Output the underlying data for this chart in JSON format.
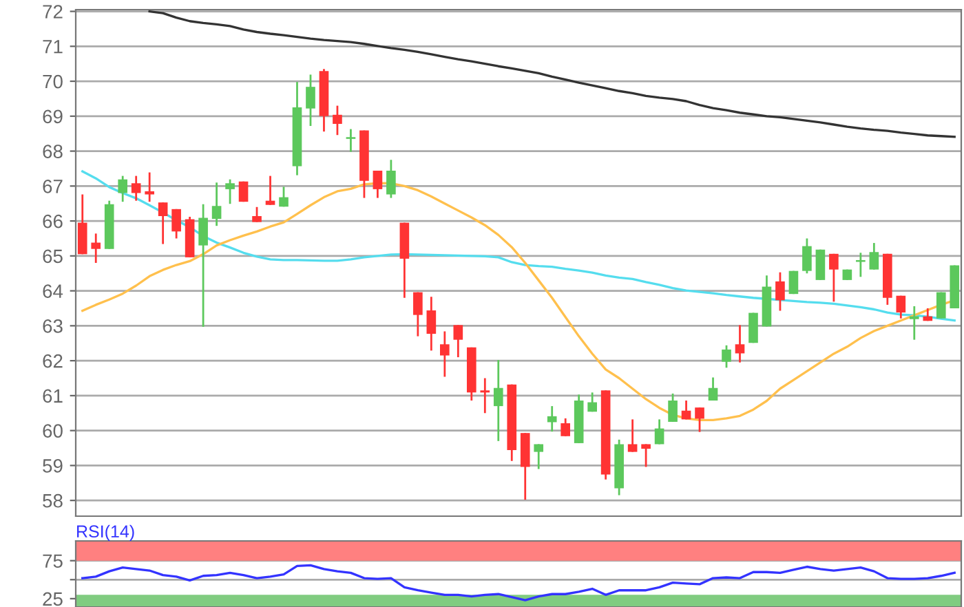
{
  "chart_data": [
    {
      "type": "candlestick",
      "categories": [
        null,
        null,
        null,
        null,
        null,
        null,
        null,
        null,
        null,
        null,
        null,
        null,
        null,
        null,
        null,
        null,
        null,
        null,
        null,
        null,
        null,
        null,
        null,
        null,
        null,
        null,
        null,
        null,
        null,
        null,
        null,
        null,
        null,
        null,
        null,
        null,
        null,
        null,
        null,
        null,
        null,
        null,
        null,
        null,
        null,
        null,
        null,
        null,
        null,
        null,
        null,
        null,
        null,
        null,
        null,
        null,
        null,
        null,
        null,
        null,
        null,
        null,
        null,
        null,
        null,
        null
      ],
      "ohlc": [
        [
          65.95,
          66.76,
          65.05,
          65.05
        ],
        [
          65.38,
          65.64,
          64.8,
          65.2
        ],
        [
          65.2,
          66.58,
          65.2,
          66.48
        ],
        [
          66.8,
          67.29,
          66.55,
          67.19
        ],
        [
          67.08,
          67.29,
          66.58,
          66.8
        ],
        [
          66.85,
          67.39,
          66.55,
          66.76
        ],
        [
          66.53,
          66.53,
          65.34,
          66.14
        ],
        [
          66.34,
          66.34,
          65.5,
          65.7
        ],
        [
          66.05,
          66.12,
          64.96,
          64.96
        ],
        [
          65.3,
          66.48,
          62.97,
          66.09
        ],
        [
          66.06,
          67.1,
          65.86,
          66.43
        ],
        [
          66.91,
          67.19,
          66.49,
          67.08
        ],
        [
          67.13,
          67.13,
          66.55,
          66.55
        ],
        [
          66.14,
          66.4,
          65.97,
          65.97
        ],
        [
          66.58,
          67.29,
          66.46,
          66.46
        ],
        [
          66.41,
          66.98,
          66.41,
          66.68
        ],
        [
          67.57,
          69.98,
          67.31,
          69.25
        ],
        [
          69.22,
          70.19,
          68.72,
          69.84
        ],
        [
          70.29,
          70.35,
          68.56,
          69.0
        ],
        [
          69.04,
          69.3,
          68.46,
          68.78
        ],
        [
          68.35,
          68.63,
          67.98,
          68.4
        ],
        [
          68.59,
          68.59,
          66.66,
          67.15
        ],
        [
          67.44,
          67.44,
          66.66,
          66.91
        ],
        [
          66.76,
          67.75,
          66.66,
          67.44
        ],
        [
          65.95,
          65.95,
          63.8,
          64.92
        ],
        [
          63.96,
          63.96,
          62.7,
          63.31
        ],
        [
          63.44,
          63.83,
          62.29,
          62.77
        ],
        [
          62.47,
          62.84,
          61.54,
          62.15
        ],
        [
          63.02,
          63.02,
          62.1,
          62.6
        ],
        [
          62.38,
          62.38,
          60.86,
          61.09
        ],
        [
          61.15,
          61.5,
          60.5,
          61.09
        ],
        [
          60.7,
          62.02,
          59.7,
          61.22
        ],
        [
          61.32,
          61.32,
          59.13,
          59.44
        ],
        [
          59.93,
          59.93,
          58.02,
          58.96
        ],
        [
          59.39,
          59.61,
          58.9,
          59.61
        ],
        [
          60.24,
          60.7,
          59.97,
          60.41
        ],
        [
          60.21,
          60.35,
          59.84,
          59.84
        ],
        [
          59.64,
          61.03,
          59.64,
          60.86
        ],
        [
          60.54,
          61.09,
          60.54,
          60.81
        ],
        [
          61.15,
          61.15,
          58.6,
          58.74
        ],
        [
          58.35,
          59.74,
          58.15,
          59.61
        ],
        [
          59.61,
          60.32,
          59.39,
          59.39
        ],
        [
          59.61,
          59.61,
          58.96,
          59.48
        ],
        [
          59.61,
          60.32,
          59.61,
          60.06
        ],
        [
          60.25,
          61.06,
          60.25,
          60.86
        ],
        [
          60.57,
          60.86,
          60.32,
          60.32
        ],
        [
          60.66,
          60.66,
          59.96,
          60.34
        ],
        [
          60.86,
          61.52,
          60.86,
          61.22
        ],
        [
          61.97,
          62.44,
          61.8,
          62.32
        ],
        [
          62.47,
          63.02,
          61.95,
          62.21
        ],
        [
          62.51,
          63.37,
          62.51,
          63.37
        ],
        [
          62.98,
          64.44,
          62.98,
          64.12
        ],
        [
          64.27,
          64.53,
          63.43,
          63.73
        ],
        [
          63.91,
          64.57,
          63.91,
          64.57
        ],
        [
          64.57,
          65.5,
          64.5,
          65.28
        ],
        [
          64.31,
          65.18,
          64.31,
          65.18
        ],
        [
          65.06,
          65.06,
          63.69,
          64.61
        ],
        [
          64.31,
          64.61,
          64.31,
          64.61
        ],
        [
          64.83,
          65.09,
          64.4,
          64.88
        ],
        [
          64.61,
          65.37,
          64.61,
          65.11
        ],
        [
          65.06,
          65.06,
          63.6,
          63.8
        ],
        [
          63.86,
          63.86,
          63.21,
          63.38
        ],
        [
          63.19,
          63.56,
          62.6,
          63.27
        ],
        [
          63.27,
          63.5,
          63.14,
          63.14
        ],
        [
          63.21,
          63.96,
          63.21,
          63.96
        ],
        [
          63.5,
          64.73,
          63.5,
          64.73
        ]
      ],
      "colors": [
        "#ff3333",
        "#ff3333",
        "#5cc85c",
        "#5cc85c",
        "#ff3333",
        "#ff3333",
        "#ff3333",
        "#ff3333",
        "#ff3333",
        "#5cc85c",
        "#5cc85c",
        "#5cc85c",
        "#ff3333",
        "#ff3333",
        "#ff3333",
        "#5cc85c",
        "#5cc85c",
        "#5cc85c",
        "#ff3333",
        "#ff3333",
        "#5cc85c",
        "#ff3333",
        "#ff3333",
        "#5cc85c",
        "#ff3333",
        "#ff3333",
        "#ff3333",
        "#ff3333",
        "#ff3333",
        "#ff3333",
        "#ff3333",
        "#5cc85c",
        "#ff3333",
        "#ff3333",
        "#5cc85c",
        "#5cc85c",
        "#ff3333",
        "#5cc85c",
        "#5cc85c",
        "#ff3333",
        "#5cc85c",
        "#ff3333",
        "#ff3333",
        "#5cc85c",
        "#5cc85c",
        "#ff3333",
        "#ff3333",
        "#5cc85c",
        "#5cc85c",
        "#ff3333",
        "#5cc85c",
        "#5cc85c",
        "#ff3333",
        "#5cc85c",
        "#5cc85c",
        "#5cc85c",
        "#ff3333",
        "#5cc85c",
        "#5cc85c",
        "#5cc85c",
        "#ff3333",
        "#ff3333",
        "#5cc85c",
        "#ff3333",
        "#5cc85c",
        "#5cc85c"
      ],
      "series": [
        {
          "type": "line",
          "color": "#333333",
          "values": [
            null,
            null,
            null,
            null,
            null,
            72.0,
            71.95,
            71.82,
            71.72,
            71.67,
            71.63,
            71.58,
            71.48,
            71.41,
            71.36,
            71.32,
            71.27,
            71.22,
            71.18,
            71.15,
            71.12,
            71.07,
            71.01,
            70.95,
            70.9,
            70.84,
            70.77,
            70.7,
            70.63,
            70.57,
            70.5,
            70.43,
            70.37,
            70.3,
            70.23,
            70.13,
            70.05,
            69.96,
            69.88,
            69.8,
            69.72,
            69.66,
            69.58,
            69.53,
            69.49,
            69.43,
            69.32,
            69.23,
            69.17,
            69.1,
            69.05,
            69.0,
            68.97,
            68.92,
            68.87,
            68.82,
            68.76,
            68.7,
            68.65,
            68.61,
            68.58,
            68.53,
            68.49,
            68.45,
            68.43,
            68.41
          ]
        },
        {
          "type": "line",
          "color": "#55ddee",
          "values": [
            67.42,
            67.22,
            66.97,
            66.8,
            66.65,
            66.45,
            66.24,
            66.02,
            65.82,
            65.57,
            65.38,
            65.24,
            65.09,
            64.98,
            64.9,
            64.88,
            64.88,
            64.87,
            64.86,
            64.86,
            64.9,
            64.96,
            65.0,
            65.04,
            65.05,
            65.04,
            65.03,
            65.02,
            65.01,
            65.0,
            64.99,
            64.96,
            64.82,
            64.74,
            64.71,
            64.69,
            64.63,
            64.58,
            64.52,
            64.44,
            64.38,
            64.34,
            64.25,
            64.17,
            64.08,
            64.01,
            63.97,
            63.93,
            63.88,
            63.84,
            63.8,
            63.77,
            63.74,
            63.71,
            63.68,
            63.66,
            63.63,
            63.58,
            63.53,
            63.47,
            63.38,
            63.32,
            63.3,
            63.26,
            63.2,
            63.15
          ]
        },
        {
          "type": "line",
          "color": "#ffc04d",
          "values": [
            63.43,
            63.6,
            63.75,
            63.92,
            64.15,
            64.42,
            64.6,
            64.74,
            64.85,
            65.05,
            65.3,
            65.45,
            65.58,
            65.7,
            65.84,
            65.96,
            66.2,
            66.45,
            66.68,
            66.85,
            66.92,
            67.05,
            67.08,
            67.08,
            67.0,
            66.88,
            66.7,
            66.5,
            66.3,
            66.1,
            65.88,
            65.6,
            65.25,
            64.8,
            64.3,
            63.8,
            63.25,
            62.7,
            62.2,
            61.75,
            61.5,
            61.2,
            60.9,
            60.65,
            60.45,
            60.35,
            60.3,
            60.3,
            60.35,
            60.42,
            60.6,
            60.85,
            61.2,
            61.45,
            61.7,
            61.95,
            62.2,
            62.4,
            62.65,
            62.85,
            63.0,
            63.15,
            63.3,
            63.45,
            63.6,
            63.73
          ]
        }
      ],
      "ylim": [
        57.55,
        72.05
      ],
      "yticks": [
        58,
        59,
        60,
        61,
        62,
        63,
        64,
        65,
        66,
        67,
        68,
        69,
        70,
        71,
        72
      ],
      "grid": "y"
    },
    {
      "type": "line",
      "title": "RSI(14)",
      "categories": [
        null,
        null,
        null,
        null,
        null,
        null,
        null,
        null,
        null,
        null,
        null,
        null,
        null,
        null,
        null,
        null,
        null,
        null,
        null,
        null,
        null,
        null,
        null,
        null,
        null,
        null,
        null,
        null,
        null,
        null,
        null,
        null,
        null,
        null,
        null,
        null,
        null,
        null,
        null,
        null,
        null,
        null,
        null,
        null,
        null,
        null,
        null,
        null,
        null,
        null,
        null,
        null,
        null,
        null,
        null,
        null,
        null,
        null,
        null,
        null,
        null,
        null,
        null,
        null,
        null,
        null
      ],
      "series": [
        {
          "color": "#3333ff",
          "values": [
            52,
            54,
            61,
            66,
            64,
            62,
            56,
            54,
            49,
            55,
            56,
            59,
            56,
            52,
            54,
            57,
            68,
            69,
            64,
            61,
            59,
            52,
            51,
            52,
            40,
            36,
            33,
            30,
            30,
            28,
            30,
            31,
            27,
            23,
            28,
            31,
            31,
            34,
            38,
            30,
            36,
            36,
            36,
            40,
            46,
            45,
            44,
            52,
            53,
            52,
            60,
            60,
            59,
            63,
            67,
            64,
            62,
            64,
            66,
            61,
            52,
            51,
            51,
            52,
            55,
            59
          ]
        }
      ],
      "ylim": [
        14,
        101
      ],
      "yticks": [
        25,
        {
          "value": 50,
          "label": null
        },
        75
      ],
      "bands": [
        {
          "axis": "y",
          "from": 75,
          "to": 101,
          "color": "#ff8080"
        },
        {
          "axis": "y",
          "from": 14,
          "to": 30,
          "color": "#80cc80"
        }
      ],
      "grid": "y"
    }
  ]
}
